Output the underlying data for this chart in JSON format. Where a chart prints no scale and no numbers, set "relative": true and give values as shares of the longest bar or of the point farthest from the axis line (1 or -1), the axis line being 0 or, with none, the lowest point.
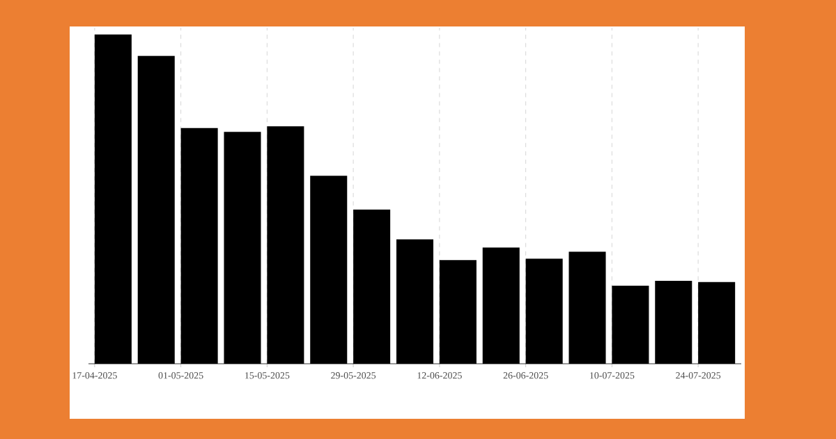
{
  "chart_data": {
    "type": "bar",
    "relative": true,
    "color": "#000000",
    "grid": true,
    "x": [
      "2025-04-20",
      "2025-04-27",
      "2025-05-04",
      "2025-05-11",
      "2025-05-18",
      "2025-05-25",
      "2025-06-01",
      "2025-06-08",
      "2025-06-15",
      "2025-06-22",
      "2025-06-29",
      "2025-07-06",
      "2025-07-13",
      "2025-07-20",
      "2025-07-27"
    ],
    "values": [
      1.0,
      0.935,
      0.716,
      0.704,
      0.721,
      0.571,
      0.468,
      0.378,
      0.315,
      0.353,
      0.319,
      0.34,
      0.237,
      0.252,
      0.248
    ],
    "xlim": [
      "2025-04-16",
      "2025-07-31"
    ],
    "xticks": [
      {
        "value": "2025-04-17",
        "label": "17-04-2025"
      },
      {
        "value": "2025-05-01",
        "label": "01-05-2025"
      },
      {
        "value": "2025-05-15",
        "label": "15-05-2025"
      },
      {
        "value": "2025-05-29",
        "label": "29-05-2025"
      },
      {
        "value": "2025-06-12",
        "label": "12-06-2025"
      },
      {
        "value": "2025-06-26",
        "label": "26-06-2025"
      },
      {
        "value": "2025-07-10",
        "label": "10-07-2025"
      },
      {
        "value": "2025-07-24",
        "label": "24-07-2025"
      }
    ]
  }
}
